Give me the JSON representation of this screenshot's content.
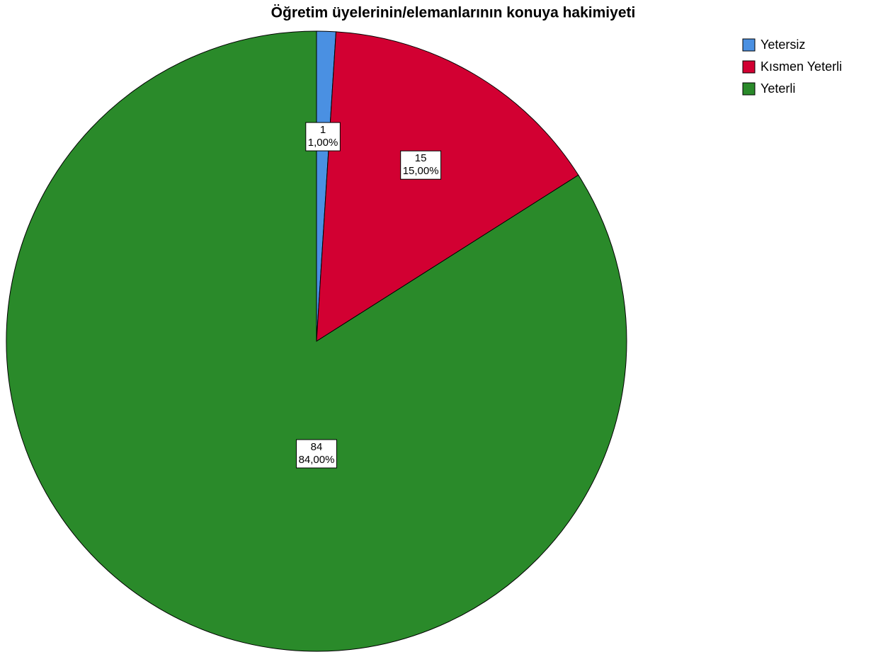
{
  "chart_data": {
    "type": "pie",
    "title": "Öğretim üyelerinin/elemanlarının konuya hakimiyeti",
    "categories": [
      "Yetersiz",
      "Kısmen Yeterli",
      "Yeterli"
    ],
    "values": [
      1,
      15,
      84
    ],
    "value_labels": [
      "1,00%",
      "15,00%",
      "84,00%"
    ],
    "colors": [
      "#4a90e2",
      "#d20032",
      "#2a8a2a"
    ],
    "legend": "top-right"
  }
}
